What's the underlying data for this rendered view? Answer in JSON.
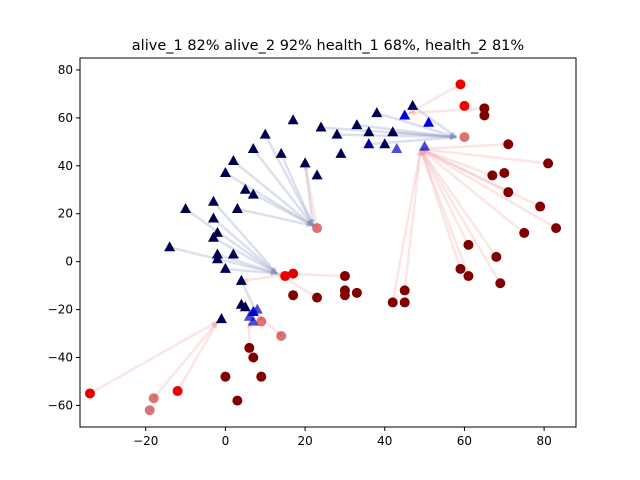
{
  "chart_data": {
    "type": "scatter",
    "title": "alive_1 82% alive_2 92% health_1 68%, health_2 81%",
    "xlabel": "",
    "ylabel": "",
    "xlim": [
      -36.5,
      88
    ],
    "ylim": [
      -69,
      85
    ],
    "xticks": [
      -20,
      0,
      20,
      40,
      60,
      80
    ],
    "yticks": [
      -60,
      -40,
      -20,
      0,
      20,
      40,
      60,
      80
    ],
    "grid": false,
    "colors": {
      "team1_dark": "#000050",
      "team1_bright": "#0000ff",
      "team2_dark": "#800000",
      "team2_bright": "#ff0000",
      "arrow_blue": "#8090c0",
      "arrow_red": "#f0a0a0"
    },
    "series": [
      {
        "marker": "triangle",
        "points": [
          {
            "x": -14,
            "y": 6,
            "h": 0.0
          },
          {
            "x": -10,
            "y": 22,
            "h": 0.0
          },
          {
            "x": -3,
            "y": 25,
            "h": 0.0
          },
          {
            "x": -3,
            "y": 18,
            "h": 0.0
          },
          {
            "x": -3,
            "y": 10,
            "h": 0.0
          },
          {
            "x": -2,
            "y": 12,
            "h": 0.0
          },
          {
            "x": -2,
            "y": 3,
            "h": 0.0
          },
          {
            "x": -2,
            "y": 1,
            "h": 0.0
          },
          {
            "x": 0,
            "y": -3,
            "h": 0.0
          },
          {
            "x": 0,
            "y": 37,
            "h": 0.0
          },
          {
            "x": 2,
            "y": 42,
            "h": 0.0
          },
          {
            "x": 2,
            "y": 3,
            "h": 0.0
          },
          {
            "x": 3,
            "y": 22,
            "h": 0.0
          },
          {
            "x": 4,
            "y": -8,
            "h": 0.0
          },
          {
            "x": 5,
            "y": 30,
            "h": 0.0
          },
          {
            "x": 7,
            "y": 28,
            "h": 0.0
          },
          {
            "x": 7,
            "y": 47,
            "h": 0.0
          },
          {
            "x": 10,
            "y": 53,
            "h": 0.0
          },
          {
            "x": 14,
            "y": 45,
            "h": 0.0
          },
          {
            "x": 17,
            "y": 59,
            "h": 0.0
          },
          {
            "x": 20,
            "y": 41,
            "h": 0.0
          },
          {
            "x": 23,
            "y": 36,
            "h": 0.0
          },
          {
            "x": 24,
            "y": 56,
            "h": 0.0
          },
          {
            "x": 28,
            "y": 53,
            "h": 0.0
          },
          {
            "x": 29,
            "y": 45,
            "h": 0.0
          },
          {
            "x": 33,
            "y": 57,
            "h": 0.0
          },
          {
            "x": 36,
            "y": 54,
            "h": 0.0
          },
          {
            "x": 38,
            "y": 62,
            "h": 0.0
          },
          {
            "x": 40,
            "y": 49,
            "h": 0.0
          },
          {
            "x": 42,
            "y": 54,
            "h": 0.0
          },
          {
            "x": 47,
            "y": 65,
            "h": 0.0
          },
          {
            "x": -1,
            "y": -24,
            "h": 0.0
          },
          {
            "x": 4,
            "y": -18,
            "h": 0.0
          },
          {
            "x": 5,
            "y": -19,
            "h": 0.0
          },
          {
            "x": 6,
            "y": -23,
            "h": 0.55
          },
          {
            "x": 7,
            "y": -21,
            "h": 0.85
          },
          {
            "x": 7,
            "y": -25,
            "h": 0.7
          },
          {
            "x": 8,
            "y": -20,
            "h": 0.5
          },
          {
            "x": 43,
            "y": 47,
            "h": 0.7
          },
          {
            "x": 36,
            "y": 49,
            "h": 0.45
          },
          {
            "x": 45,
            "y": 61,
            "h": 0.9
          },
          {
            "x": 51,
            "y": 58,
            "h": 0.85
          },
          {
            "x": 50,
            "y": 48,
            "h": 0.75
          }
        ]
      },
      {
        "marker": "circle",
        "points": [
          {
            "x": -34,
            "y": -55,
            "h": 0.85
          },
          {
            "x": -12,
            "y": -54,
            "h": 0.9
          },
          {
            "x": -18,
            "y": -57,
            "h": 0.55
          },
          {
            "x": -19,
            "y": -62,
            "h": 0.45
          },
          {
            "x": 0,
            "y": -48,
            "h": 0.0
          },
          {
            "x": 3,
            "y": -58,
            "h": 0.0
          },
          {
            "x": 6,
            "y": -36,
            "h": 0.0
          },
          {
            "x": 7,
            "y": -40,
            "h": 0.0
          },
          {
            "x": 9,
            "y": -48,
            "h": 0.0
          },
          {
            "x": 14,
            "y": -31,
            "h": 0.5
          },
          {
            "x": 9,
            "y": -25,
            "h": 0.6
          },
          {
            "x": 15,
            "y": -6,
            "h": 0.85
          },
          {
            "x": 17,
            "y": -5,
            "h": 0.75
          },
          {
            "x": 17,
            "y": -14,
            "h": 0.0
          },
          {
            "x": 23,
            "y": -15,
            "h": 0.0
          },
          {
            "x": 23,
            "y": 14,
            "h": 0.5
          },
          {
            "x": 30,
            "y": -6,
            "h": 0.0
          },
          {
            "x": 30,
            "y": -12,
            "h": 0.0
          },
          {
            "x": 30,
            "y": -14,
            "h": 0.0
          },
          {
            "x": 33,
            "y": -13,
            "h": 0.0
          },
          {
            "x": 42,
            "y": -17,
            "h": 0.0
          },
          {
            "x": 45,
            "y": -12,
            "h": 0.0
          },
          {
            "x": 45,
            "y": -17,
            "h": 0.0
          },
          {
            "x": 59,
            "y": -3,
            "h": 0.0
          },
          {
            "x": 61,
            "y": 7,
            "h": 0.0
          },
          {
            "x": 61,
            "y": -6,
            "h": 0.0
          },
          {
            "x": 68,
            "y": 2,
            "h": 0.0
          },
          {
            "x": 69,
            "y": -9,
            "h": 0.0
          },
          {
            "x": 67,
            "y": 36,
            "h": 0.0
          },
          {
            "x": 70,
            "y": 37,
            "h": 0.0
          },
          {
            "x": 71,
            "y": 29,
            "h": 0.0
          },
          {
            "x": 71,
            "y": 49,
            "h": 0.0
          },
          {
            "x": 75,
            "y": 12,
            "h": 0.0
          },
          {
            "x": 79,
            "y": 23,
            "h": 0.0
          },
          {
            "x": 81,
            "y": 41,
            "h": 0.0
          },
          {
            "x": 83,
            "y": 14,
            "h": 0.0
          },
          {
            "x": 65,
            "y": 61,
            "h": 0.0
          },
          {
            "x": 65,
            "y": 64,
            "h": 0.0
          },
          {
            "x": 59,
            "y": 74,
            "h": 0.8
          },
          {
            "x": 60,
            "y": 65,
            "h": 0.9
          },
          {
            "x": 60,
            "y": 52,
            "h": 0.5
          }
        ]
      }
    ],
    "arrows": [
      {
        "from": [
          -14,
          6
        ],
        "to": [
          13,
          -5
        ],
        "color": "arrow_blue"
      },
      {
        "from": [
          -10,
          22
        ],
        "to": [
          13,
          -5
        ],
        "color": "arrow_blue"
      },
      {
        "from": [
          -3,
          25
        ],
        "to": [
          13,
          -5
        ],
        "color": "arrow_blue"
      },
      {
        "from": [
          -3,
          18
        ],
        "to": [
          13,
          -5
        ],
        "color": "arrow_blue"
      },
      {
        "from": [
          -3,
          10
        ],
        "to": [
          13,
          -5
        ],
        "color": "arrow_blue"
      },
      {
        "from": [
          -2,
          3
        ],
        "to": [
          13,
          -5
        ],
        "color": "arrow_blue"
      },
      {
        "from": [
          0,
          -3
        ],
        "to": [
          13,
          -5
        ],
        "color": "arrow_blue"
      },
      {
        "from": [
          0,
          37
        ],
        "to": [
          22,
          15
        ],
        "color": "arrow_blue"
      },
      {
        "from": [
          2,
          42
        ],
        "to": [
          22,
          15
        ],
        "color": "arrow_blue"
      },
      {
        "from": [
          3,
          22
        ],
        "to": [
          22,
          15
        ],
        "color": "arrow_blue"
      },
      {
        "from": [
          5,
          30
        ],
        "to": [
          22,
          15
        ],
        "color": "arrow_blue"
      },
      {
        "from": [
          7,
          47
        ],
        "to": [
          22,
          15
        ],
        "color": "arrow_blue"
      },
      {
        "from": [
          10,
          53
        ],
        "to": [
          22,
          15
        ],
        "color": "arrow_blue"
      },
      {
        "from": [
          14,
          45
        ],
        "to": [
          22,
          15
        ],
        "color": "arrow_blue"
      },
      {
        "from": [
          20,
          41
        ],
        "to": [
          22,
          15
        ],
        "color": "arrow_blue"
      },
      {
        "from": [
          4,
          -8
        ],
        "to": [
          8,
          -22
        ],
        "color": "arrow_blue"
      },
      {
        "from": [
          24,
          56
        ],
        "to": [
          58,
          52
        ],
        "color": "arrow_blue"
      },
      {
        "from": [
          28,
          53
        ],
        "to": [
          58,
          52
        ],
        "color": "arrow_blue"
      },
      {
        "from": [
          33,
          57
        ],
        "to": [
          58,
          52
        ],
        "color": "arrow_blue"
      },
      {
        "from": [
          38,
          62
        ],
        "to": [
          58,
          52
        ],
        "color": "arrow_blue"
      },
      {
        "from": [
          42,
          54
        ],
        "to": [
          58,
          52
        ],
        "color": "arrow_blue"
      },
      {
        "from": [
          47,
          65
        ],
        "to": [
          58,
          52
        ],
        "color": "arrow_blue"
      },
      {
        "from": [
          36,
          49
        ],
        "to": [
          58,
          52
        ],
        "color": "arrow_blue"
      },
      {
        "from": [
          -34,
          -55
        ],
        "to": [
          -2,
          -25
        ],
        "color": "arrow_red"
      },
      {
        "from": [
          -12,
          -54
        ],
        "to": [
          -2,
          -25
        ],
        "color": "arrow_red"
      },
      {
        "from": [
          -18,
          -57
        ],
        "to": [
          -2,
          -25
        ],
        "color": "arrow_red"
      },
      {
        "from": [
          6,
          -36
        ],
        "to": [
          6,
          -25
        ],
        "color": "arrow_red"
      },
      {
        "from": [
          14,
          -31
        ],
        "to": [
          8,
          -22
        ],
        "color": "arrow_red"
      },
      {
        "from": [
          17,
          -5
        ],
        "to": [
          4,
          -8
        ],
        "color": "arrow_red"
      },
      {
        "from": [
          23,
          14
        ],
        "to": [
          20,
          41
        ],
        "color": "arrow_red"
      },
      {
        "from": [
          59,
          -3
        ],
        "to": [
          49,
          47
        ],
        "color": "arrow_red"
      },
      {
        "from": [
          61,
          7
        ],
        "to": [
          49,
          47
        ],
        "color": "arrow_red"
      },
      {
        "from": [
          61,
          -6
        ],
        "to": [
          49,
          47
        ],
        "color": "arrow_red"
      },
      {
        "from": [
          68,
          2
        ],
        "to": [
          49,
          47
        ],
        "color": "arrow_red"
      },
      {
        "from": [
          69,
          -9
        ],
        "to": [
          49,
          47
        ],
        "color": "arrow_red"
      },
      {
        "from": [
          67,
          36
        ],
        "to": [
          49,
          47
        ],
        "color": "arrow_red"
      },
      {
        "from": [
          71,
          29
        ],
        "to": [
          49,
          47
        ],
        "color": "arrow_red"
      },
      {
        "from": [
          71,
          49
        ],
        "to": [
          49,
          47
        ],
        "color": "arrow_red"
      },
      {
        "from": [
          75,
          12
        ],
        "to": [
          49,
          47
        ],
        "color": "arrow_red"
      },
      {
        "from": [
          79,
          23
        ],
        "to": [
          49,
          47
        ],
        "color": "arrow_red"
      },
      {
        "from": [
          81,
          41
        ],
        "to": [
          49,
          47
        ],
        "color": "arrow_red"
      },
      {
        "from": [
          83,
          14
        ],
        "to": [
          49,
          47
        ],
        "color": "arrow_red"
      },
      {
        "from": [
          45,
          -12
        ],
        "to": [
          49,
          47
        ],
        "color": "arrow_red"
      },
      {
        "from": [
          42,
          -17
        ],
        "to": [
          49,
          47
        ],
        "color": "arrow_red"
      },
      {
        "from": [
          65,
          64
        ],
        "to": [
          46,
          62
        ],
        "color": "arrow_red"
      },
      {
        "from": [
          59,
          74
        ],
        "to": [
          46,
          62
        ],
        "color": "arrow_red"
      },
      {
        "from": [
          30,
          -6
        ],
        "to": [
          13,
          -5
        ],
        "color": "arrow_red"
      },
      {
        "from": [
          23,
          -15
        ],
        "to": [
          13,
          -5
        ],
        "color": "arrow_red"
      }
    ]
  }
}
